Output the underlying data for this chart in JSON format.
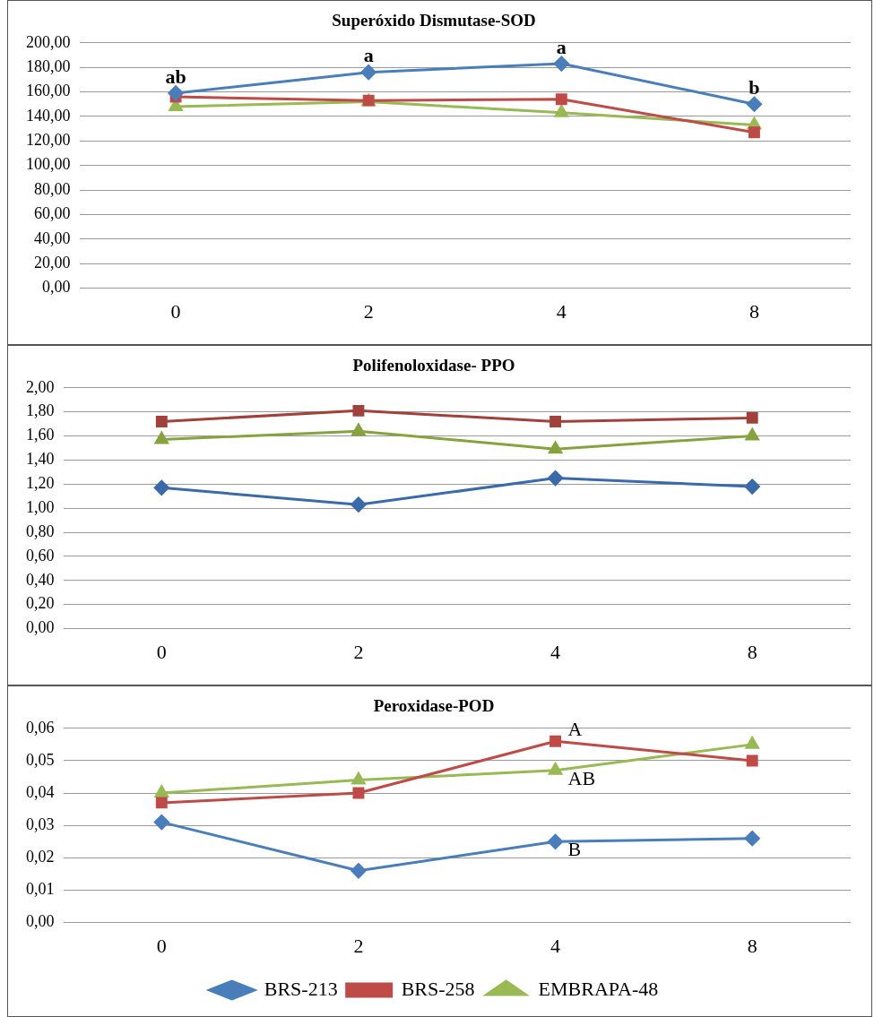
{
  "chart_data": [
    {
      "type": "line",
      "title": "Superóxido Dismutase-SOD",
      "categories": [
        "0",
        "2",
        "4",
        "8"
      ],
      "series": [
        {
          "color": "#4a7ebb",
          "marker": "diamond",
          "values": [
            159,
            176,
            183,
            150
          ]
        },
        {
          "color": "#be4b48",
          "marker": "square",
          "values": [
            156,
            153,
            154,
            127
          ]
        },
        {
          "color": "#98b954",
          "marker": "triangle",
          "values": [
            148,
            152,
            143,
            133
          ]
        }
      ],
      "ylim": [
        0,
        200
      ],
      "yticks": [
        {
          "value": 0,
          "label": "0,00"
        },
        {
          "value": 20,
          "label": "20,00"
        },
        {
          "value": 40,
          "label": "40,00"
        },
        {
          "value": 60,
          "label": "60,00"
        },
        {
          "value": 80,
          "label": "80,00"
        },
        {
          "value": 100,
          "label": "100,00"
        },
        {
          "value": 120,
          "label": "120,00"
        },
        {
          "value": 140,
          "label": "140,00"
        },
        {
          "value": 160,
          "label": "160,00"
        },
        {
          "value": 180,
          "label": "180,00"
        },
        {
          "value": 200,
          "label": "200,00"
        }
      ],
      "grid": "y",
      "legend": false,
      "annotations": [
        {
          "text": "ab",
          "x": "0",
          "y": 159
        },
        {
          "text": "a",
          "x": "2",
          "y": 176
        },
        {
          "text": "a",
          "x": "4",
          "y": 183
        },
        {
          "text": "b",
          "x": "8",
          "y": 150
        }
      ]
    },
    {
      "type": "line",
      "title": "Polifenoloxidase- PPO",
      "categories": [
        "0",
        "2",
        "4",
        "8"
      ],
      "series": [
        {
          "color": "#3a6aaa",
          "marker": "diamond",
          "values": [
            1.17,
            1.03,
            1.25,
            1.18
          ]
        },
        {
          "color": "#a0413c",
          "marker": "square",
          "values": [
            1.72,
            1.81,
            1.72,
            1.75
          ]
        },
        {
          "color": "#86a33f",
          "marker": "triangle",
          "values": [
            1.57,
            1.64,
            1.49,
            1.6
          ]
        }
      ],
      "ylim": [
        0,
        2
      ],
      "yticks": [
        {
          "value": 0,
          "label": "0,00"
        },
        {
          "value": 0.2,
          "label": "0,20"
        },
        {
          "value": 0.4,
          "label": "0,40"
        },
        {
          "value": 0.6,
          "label": "0,60"
        },
        {
          "value": 0.8,
          "label": "0,80"
        },
        {
          "value": 1,
          "label": "1,00"
        },
        {
          "value": 1.2,
          "label": "1,20"
        },
        {
          "value": 1.4,
          "label": "1,40"
        },
        {
          "value": 1.6,
          "label": "1,60"
        },
        {
          "value": 1.8,
          "label": "1,80"
        },
        {
          "value": 2,
          "label": "2,00"
        }
      ],
      "grid": "y",
      "legend": false
    },
    {
      "type": "line",
      "title": "Peroxidase-POD",
      "categories": [
        "0",
        "2",
        "4",
        "8"
      ],
      "series": [
        {
          "name": "BRS-213",
          "color": "#4a7ebb",
          "marker": "diamond",
          "values": [
            0.031,
            0.016,
            0.025,
            0.026
          ]
        },
        {
          "name": "BRS-258",
          "color": "#be4b48",
          "marker": "square",
          "values": [
            0.037,
            0.04,
            0.056,
            0.05
          ]
        },
        {
          "name": "EMBRAPA-48",
          "color": "#98b954",
          "marker": "triangle",
          "values": [
            0.04,
            0.044,
            0.047,
            0.055
          ]
        }
      ],
      "ylim": [
        0,
        0.06
      ],
      "yticks": [
        {
          "value": 0,
          "label": "0,00"
        },
        {
          "value": 0.01,
          "label": "0,01"
        },
        {
          "value": 0.02,
          "label": "0,02"
        },
        {
          "value": 0.03,
          "label": "0,03"
        },
        {
          "value": 0.04,
          "label": "0,04"
        },
        {
          "value": 0.05,
          "label": "0,05"
        },
        {
          "value": 0.06,
          "label": "0,06"
        }
      ],
      "grid": "y",
      "legend": "bottom",
      "annotations": [
        {
          "text": "A",
          "x": "4",
          "y": 0.056
        },
        {
          "text": "AB",
          "x": "4",
          "y": 0.047
        },
        {
          "text": "B",
          "x": "4",
          "y": 0.025
        }
      ]
    }
  ]
}
